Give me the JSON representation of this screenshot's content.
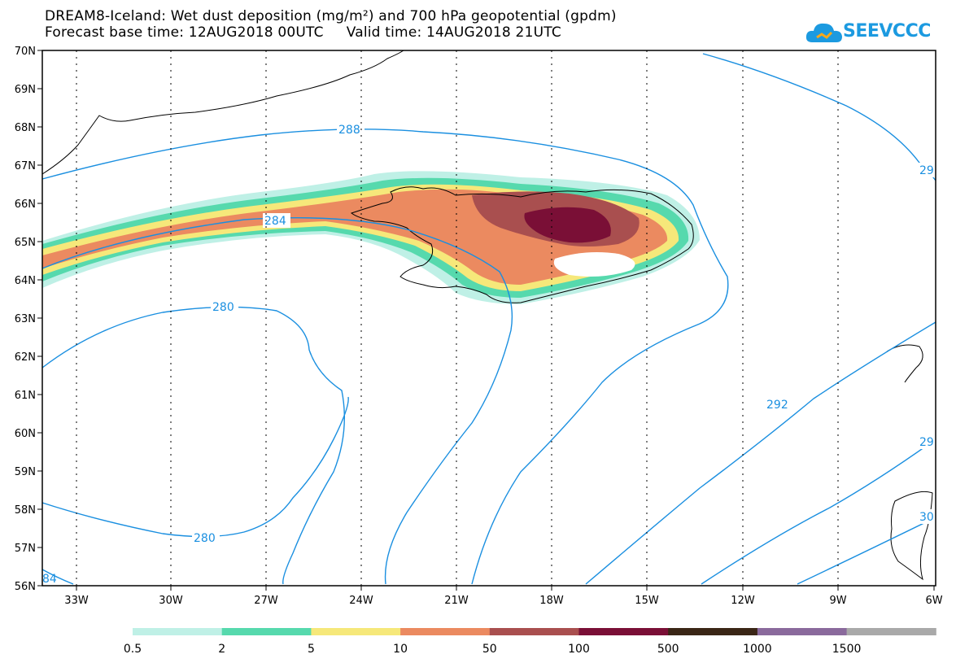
{
  "header": {
    "title_line1": "DREAM8-Iceland: Wet dust deposition (mg/m²) and 700 hPa geopotential (gpdm)",
    "title_line2": "Forecast base time: 12AUG2018 00UTC     Valid time: 14AUG2018 21UTC"
  },
  "logo": {
    "text": "SEEVCCC",
    "icon": "cloud-icon",
    "color": "#1c9ae0"
  },
  "map": {
    "lat_labels": [
      "70N",
      "69N",
      "68N",
      "67N",
      "66N",
      "65N",
      "64N",
      "63N",
      "62N",
      "61N",
      "60N",
      "59N",
      "58N",
      "57N",
      "56N"
    ],
    "lon_labels": [
      "33W",
      "30W",
      "27W",
      "24W",
      "21W",
      "18W",
      "15W",
      "12W",
      "9W",
      "6W"
    ],
    "contour_labels": [
      "288",
      "284",
      "280",
      "280",
      "292",
      "29",
      "29",
      "30",
      "84"
    ],
    "contour_color": "#1a8fe0"
  },
  "legend": {
    "labels": [
      "0.5",
      "2",
      "5",
      "10",
      "50",
      "100",
      "500",
      "1000",
      "1500"
    ],
    "colors": [
      "#bff0e6",
      "#56d9ad",
      "#f6e87a",
      "#eb8a60",
      "#a94f4f",
      "#7a0f36",
      "#3a2616",
      "#8a6a9c",
      "#a9a9a9"
    ]
  }
}
